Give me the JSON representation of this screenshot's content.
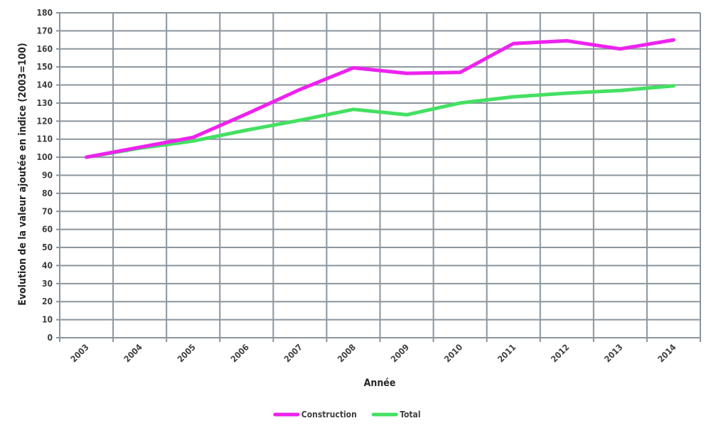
{
  "chart_data": {
    "type": "line",
    "title": "",
    "xlabel": "Année",
    "ylabel": "Evolution de la valeur ajoutée en indice (2003=100)",
    "categories": [
      "2003",
      "2004",
      "2005",
      "2006",
      "2007",
      "2008",
      "2009",
      "2010",
      "2011",
      "2012",
      "2013",
      "2014"
    ],
    "ylim": [
      0,
      180
    ],
    "yticks": [
      0,
      10,
      20,
      30,
      40,
      50,
      60,
      70,
      80,
      90,
      100,
      110,
      120,
      130,
      140,
      150,
      160,
      170,
      180
    ],
    "grid": true,
    "legend_position": "bottom",
    "series": [
      {
        "name": "Construction",
        "color": "#ee22ee",
        "values": [
          100,
          105.5,
          111,
          124,
          137.5,
          149.5,
          146.5,
          147,
          163,
          164.5,
          160,
          165
        ]
      },
      {
        "name": "Total",
        "color": "#44e062",
        "values": [
          100,
          105,
          109,
          115,
          120.5,
          126.5,
          123.5,
          130,
          133.5,
          135.5,
          137,
          139.5
        ]
      }
    ]
  }
}
